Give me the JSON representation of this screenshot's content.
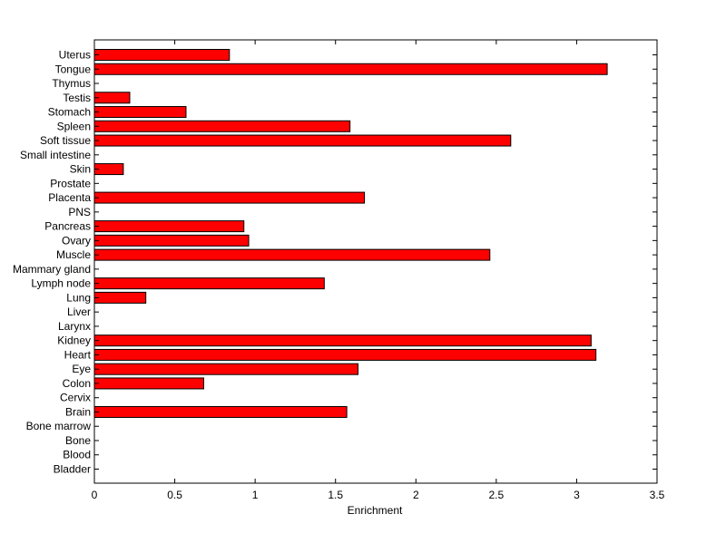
{
  "chart_data": {
    "type": "bar",
    "orientation": "horizontal",
    "title": "",
    "xlabel": "Enrichment",
    "ylabel": "",
    "xlim": [
      0,
      3.5
    ],
    "xticks": [
      0,
      0.5,
      1,
      1.5,
      2,
      2.5,
      3,
      3.5
    ],
    "xtick_labels": [
      "0",
      "0.5",
      "1",
      "1.5",
      "2",
      "2.5",
      "3",
      "3.5"
    ],
    "grid": false,
    "legend": "none",
    "bar_color": "#ff0000",
    "bar_edge_color": "#000000",
    "categories": [
      "Bladder",
      "Blood",
      "Bone",
      "Bone marrow",
      "Brain",
      "Cervix",
      "Colon",
      "Eye",
      "Heart",
      "Kidney",
      "Larynx",
      "Liver",
      "Lung",
      "Lymph node",
      "Mammary gland",
      "Muscle",
      "Ovary",
      "Pancreas",
      "PNS",
      "Placenta",
      "Prostate",
      "Skin",
      "Small intestine",
      "Soft tissue",
      "Spleen",
      "Stomach",
      "Testis",
      "Thymus",
      "Tongue",
      "Uterus"
    ],
    "values": [
      0,
      0,
      0,
      0,
      1.57,
      0,
      0.68,
      1.64,
      3.12,
      3.09,
      0,
      0,
      0.32,
      1.43,
      0,
      2.46,
      0.96,
      0.93,
      0,
      1.68,
      0,
      0.18,
      0,
      2.59,
      1.59,
      0.57,
      0.22,
      0,
      3.19,
      0.84
    ]
  }
}
